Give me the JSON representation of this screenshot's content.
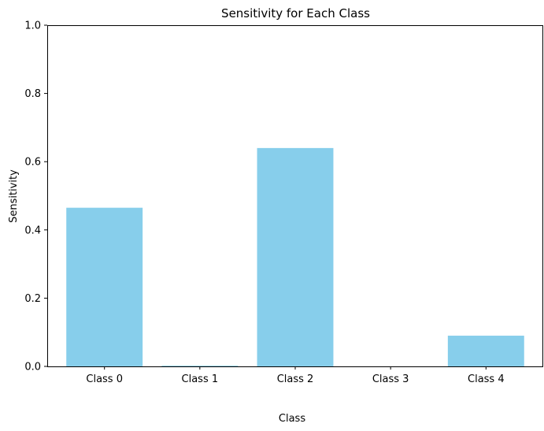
{
  "chart_data": {
    "type": "bar",
    "title": "Sensitivity for Each Class",
    "xlabel": "Class",
    "ylabel": "Sensitivity",
    "categories": [
      "Class 0",
      "Class 1",
      "Class 2",
      "Class 3",
      "Class 4"
    ],
    "values": [
      0.465,
      0.002,
      0.64,
      0.0,
      0.09
    ],
    "ylim": [
      0,
      1
    ],
    "yticks": [
      "0.0",
      "0.2",
      "0.4",
      "0.6",
      "0.8",
      "1.0"
    ],
    "bar_color": "#87CEEB",
    "grid": false,
    "legend": "none"
  }
}
